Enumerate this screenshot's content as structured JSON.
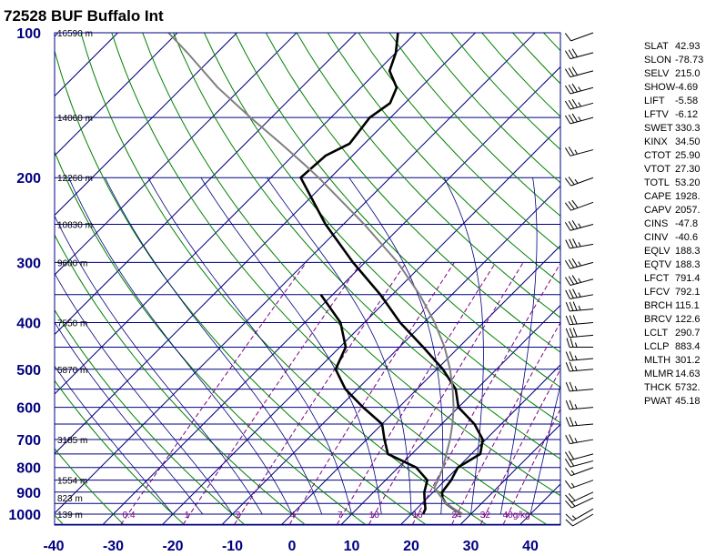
{
  "chart_data": {
    "type": "skew-t",
    "title": "72528 BUF Buffalo Int",
    "pressure_ticks": [
      "100",
      "200",
      "300",
      "400",
      "500",
      "600",
      "700",
      "800",
      "900",
      "1000"
    ],
    "temperature_ticks": [
      "-40",
      "-30",
      "-20",
      "-10",
      "0",
      "10",
      "20",
      "30",
      "40"
    ],
    "xlim": [
      -40,
      45
    ],
    "ylim_hPa": [
      1050,
      100
    ],
    "height_labels": [
      {
        "p": 100,
        "text": "16590 m"
      },
      {
        "p": 150,
        "text": "14060 m"
      },
      {
        "p": 200,
        "text": "12260 m"
      },
      {
        "p": 250,
        "text": "10830 m"
      },
      {
        "p": 300,
        "text": "9600 m"
      },
      {
        "p": 400,
        "text": "7550 m"
      },
      {
        "p": 500,
        "text": "5870 m"
      },
      {
        "p": 700,
        "text": "3185 m"
      },
      {
        "p": 850,
        "text": "1554 m"
      },
      {
        "p": 925,
        "text": "823 m"
      },
      {
        "p": 1000,
        "text": "139 m"
      }
    ],
    "mixing_ratio_labels": [
      {
        "w": 0.4,
        "text": "0.4"
      },
      {
        "w": 1,
        "text": "1"
      },
      {
        "w": 2,
        "text": "2"
      },
      {
        "w": 4,
        "text": "4"
      },
      {
        "w": 7,
        "text": "7"
      },
      {
        "w": 10,
        "text": "10"
      },
      {
        "w": 16,
        "text": "16"
      },
      {
        "w": 24,
        "text": "24"
      },
      {
        "w": 32,
        "text": "32"
      },
      {
        "w": 40,
        "text": "40g/kg"
      }
    ],
    "series": [
      {
        "role": "temperature",
        "points": [
          [
            1000,
            28.5
          ],
          [
            975,
            26.2
          ],
          [
            950,
            24.0
          ],
          [
            925,
            22.5
          ],
          [
            900,
            21.5
          ],
          [
            850,
            21.0
          ],
          [
            800,
            20.0
          ],
          [
            750,
            21.5
          ],
          [
            700,
            19.5
          ],
          [
            650,
            15.5
          ],
          [
            600,
            10.0
          ],
          [
            550,
            6.5
          ],
          [
            500,
            1.0
          ],
          [
            450,
            -6.0
          ],
          [
            400,
            -14.0
          ],
          [
            350,
            -22.0
          ],
          [
            300,
            -32.0
          ],
          [
            250,
            -43.0
          ],
          [
            200,
            -55.0
          ],
          [
            180,
            -54.5
          ],
          [
            170,
            -52.5
          ],
          [
            150,
            -53.5
          ],
          [
            140,
            -52.5
          ],
          [
            130,
            -54.0
          ],
          [
            120,
            -58.0
          ],
          [
            110,
            -60.0
          ],
          [
            100,
            -63.0
          ]
        ]
      },
      {
        "role": "dewpoint",
        "points": [
          [
            1000,
            22.0
          ],
          [
            975,
            21.5
          ],
          [
            950,
            20.5
          ],
          [
            925,
            19.5
          ],
          [
            900,
            18.5
          ],
          [
            850,
            17.0
          ],
          [
            800,
            13.0
          ],
          [
            750,
            6.0
          ],
          [
            700,
            3.0
          ],
          [
            650,
            0.0
          ],
          [
            600,
            -6.0
          ],
          [
            550,
            -12.0
          ],
          [
            500,
            -17.0
          ],
          [
            450,
            -19.0
          ],
          [
            400,
            -24.0
          ],
          [
            350,
            -32.0
          ]
        ]
      },
      {
        "role": "parcel",
        "points": [
          [
            1000,
            28.5
          ],
          [
            950,
            24.0
          ],
          [
            900,
            20.7
          ],
          [
            883.4,
            19.5
          ],
          [
            850,
            18.8
          ],
          [
            800,
            17.5
          ],
          [
            750,
            15.8
          ],
          [
            700,
            14.0
          ],
          [
            650,
            11.8
          ],
          [
            600,
            9.2
          ],
          [
            550,
            6.0
          ],
          [
            500,
            2.2
          ],
          [
            450,
            -2.4
          ],
          [
            400,
            -8.2
          ],
          [
            350,
            -15.4
          ],
          [
            300,
            -24.5
          ],
          [
            250,
            -36.5
          ],
          [
            200,
            -52.0
          ],
          [
            188,
            -56.5
          ],
          [
            170,
            -64.0
          ],
          [
            150,
            -73.5
          ],
          [
            130,
            -84.0
          ],
          [
            110,
            -95.0
          ],
          [
            100,
            -101.5
          ]
        ]
      }
    ],
    "wind_barbs": [
      {
        "p": 1000,
        "dir": 240,
        "kt": 10
      },
      {
        "p": 975,
        "dir": 240,
        "kt": 15
      },
      {
        "p": 925,
        "dir": 245,
        "kt": 20
      },
      {
        "p": 900,
        "dir": 245,
        "kt": 20
      },
      {
        "p": 850,
        "dir": 250,
        "kt": 15
      },
      {
        "p": 800,
        "dir": 250,
        "kt": 15
      },
      {
        "p": 775,
        "dir": 255,
        "kt": 20
      },
      {
        "p": 750,
        "dir": 255,
        "kt": 20
      },
      {
        "p": 700,
        "dir": 260,
        "kt": 25
      },
      {
        "p": 650,
        "dir": 265,
        "kt": 25
      },
      {
        "p": 600,
        "dir": 265,
        "kt": 25
      },
      {
        "p": 550,
        "dir": 265,
        "kt": 25
      },
      {
        "p": 500,
        "dir": 265,
        "kt": 25
      },
      {
        "p": 475,
        "dir": 265,
        "kt": 25
      },
      {
        "p": 450,
        "dir": 270,
        "kt": 25
      },
      {
        "p": 425,
        "dir": 265,
        "kt": 30
      },
      {
        "p": 400,
        "dir": 265,
        "kt": 30
      },
      {
        "p": 375,
        "dir": 265,
        "kt": 35
      },
      {
        "p": 350,
        "dir": 260,
        "kt": 35
      },
      {
        "p": 325,
        "dir": 255,
        "kt": 35
      },
      {
        "p": 300,
        "dir": 255,
        "kt": 35
      },
      {
        "p": 275,
        "dir": 260,
        "kt": 35
      },
      {
        "p": 250,
        "dir": 255,
        "kt": 35
      },
      {
        "p": 225,
        "dir": 250,
        "kt": 30
      },
      {
        "p": 200,
        "dir": 250,
        "kt": 25
      },
      {
        "p": 175,
        "dir": 255,
        "kt": 25
      },
      {
        "p": 150,
        "dir": 255,
        "kt": 35
      },
      {
        "p": 140,
        "dir": 255,
        "kt": 35
      },
      {
        "p": 130,
        "dir": 255,
        "kt": 35
      },
      {
        "p": 120,
        "dir": 255,
        "kt": 30
      },
      {
        "p": 110,
        "dir": 255,
        "kt": 30
      },
      {
        "p": 100,
        "dir": 250,
        "kt": 10
      }
    ],
    "stability_indices": [
      {
        "name": "SLAT",
        "value": "42.93"
      },
      {
        "name": "SLON",
        "value": "-78.73"
      },
      {
        "name": "SELV",
        "value": "215.0"
      },
      {
        "name": "SHOW",
        "value": "-4.69"
      },
      {
        "name": "LIFT",
        "value": "-5.58"
      },
      {
        "name": "LFTV",
        "value": "-6.12"
      },
      {
        "name": "SWET",
        "value": "330.3"
      },
      {
        "name": "KINX",
        "value": "34.50"
      },
      {
        "name": "CTOT",
        "value": "25.90"
      },
      {
        "name": "VTOT",
        "value": "27.30"
      },
      {
        "name": "TOTL",
        "value": "53.20"
      },
      {
        "name": "CAPE",
        "value": "1928."
      },
      {
        "name": "CAPV",
        "value": "2057."
      },
      {
        "name": "CINS",
        "value": "-47.8"
      },
      {
        "name": "CINV",
        "value": "-40.6"
      },
      {
        "name": "EQLV",
        "value": "188.3"
      },
      {
        "name": "EQTV",
        "value": "188.3"
      },
      {
        "name": "LFCT",
        "value": "791.4"
      },
      {
        "name": "LFCV",
        "value": "792.1"
      },
      {
        "name": "BRCH",
        "value": "115.1"
      },
      {
        "name": "BRCV",
        "value": "122.6"
      },
      {
        "name": "LCLT",
        "value": "290.7"
      },
      {
        "name": "LCLP",
        "value": "883.4"
      },
      {
        "name": "MLTH",
        "value": "301.2"
      },
      {
        "name": "MLMR",
        "value": "14.63"
      },
      {
        "name": "THCK",
        "value": "5732."
      },
      {
        "name": "PWAT",
        "value": "45.18"
      }
    ],
    "colors": {
      "axis_labels": "#000080",
      "isobars_isotherms": "#000080",
      "dry_adiabats": "#008000",
      "moist_adiabats": "#000080",
      "mixing_ratio": "#800080",
      "sounding": "#000000",
      "parcel": "#808080"
    }
  }
}
